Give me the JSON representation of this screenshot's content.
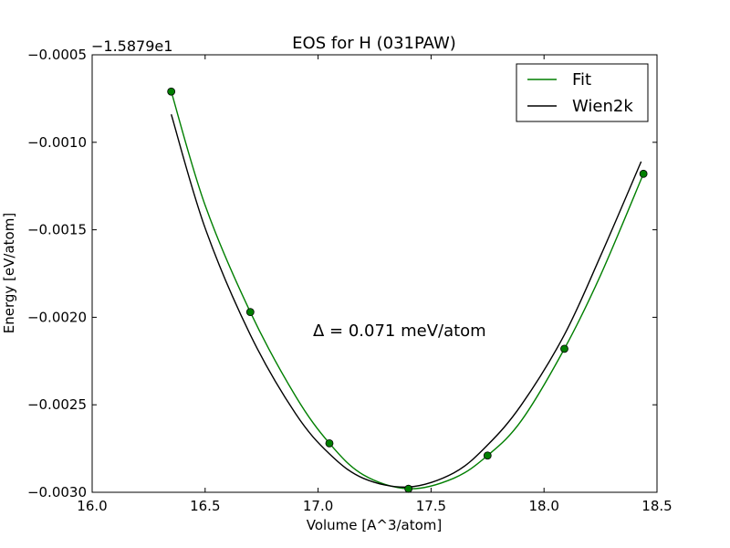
{
  "chart_data": {
    "type": "line",
    "title": "EOS for H (031PAW)",
    "xlabel": "Volume [A^3/atom]",
    "ylabel": "Energy [eV/atom]",
    "offset_text": "−1.5879e1",
    "xlim": [
      16.0,
      18.5
    ],
    "ylim": [
      -0.003,
      -0.0005
    ],
    "xticks": [
      16.0,
      16.5,
      17.0,
      17.5,
      18.0,
      18.5
    ],
    "xtick_labels": [
      "16.0",
      "16.5",
      "17.0",
      "17.5",
      "18.0",
      "18.5"
    ],
    "yticks": [
      -0.0005,
      -0.001,
      -0.0015,
      -0.002,
      -0.0025,
      -0.003
    ],
    "ytick_labels": [
      "−0.0005",
      "−0.0010",
      "−0.0015",
      "−0.0020",
      "−0.0025",
      "−0.0030"
    ],
    "grid": false,
    "legend_position": "top-right",
    "annotation": "Δ = 0.071 meV/atom",
    "points": {
      "x": [
        16.35,
        16.7,
        17.05,
        17.4,
        17.75,
        18.09,
        18.44
      ],
      "y": [
        -0.00071,
        -0.00197,
        -0.00272,
        -0.00298,
        -0.00279,
        -0.00218,
        -0.00118
      ],
      "color": "#007f00"
    },
    "series": [
      {
        "name": "Fit",
        "color": "#007f00",
        "x": [
          16.35,
          16.5,
          16.7,
          16.9,
          17.05,
          17.2,
          17.4,
          17.6,
          17.75,
          17.9,
          18.09,
          18.25,
          18.44
        ],
        "y": [
          -0.00071,
          -0.00136,
          -0.00197,
          -0.00245,
          -0.00272,
          -0.0029,
          -0.00298,
          -0.00292,
          -0.00279,
          -0.00259,
          -0.00218,
          -0.00176,
          -0.00118
        ]
      },
      {
        "name": "Wien2k",
        "color": "#000000",
        "x": [
          16.35,
          16.5,
          16.7,
          16.9,
          17.05,
          17.2,
          17.4,
          17.6,
          17.75,
          17.9,
          18.09,
          18.25,
          18.43
        ],
        "y": [
          -0.00084,
          -0.00149,
          -0.0021,
          -0.00255,
          -0.00278,
          -0.00292,
          -0.00297,
          -0.00289,
          -0.00273,
          -0.0025,
          -0.0021,
          -0.00165,
          -0.00111
        ]
      }
    ]
  }
}
